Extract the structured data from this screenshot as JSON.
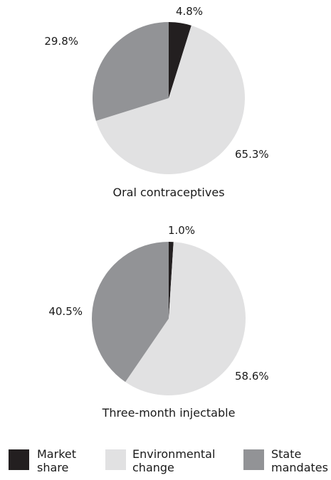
{
  "chart_data": [
    {
      "type": "pie",
      "title": "Oral contraceptives",
      "series": [
        {
          "name": "Market share",
          "value": 4.8,
          "label": "4.8%"
        },
        {
          "name": "Environmental change",
          "value": 65.3,
          "label": "65.3%"
        },
        {
          "name": "State mandates",
          "value": 29.8,
          "label": "29.8%"
        }
      ]
    },
    {
      "type": "pie",
      "title": "Three-month injectable",
      "series": [
        {
          "name": "Market share",
          "value": 1.0,
          "label": "1.0%"
        },
        {
          "name": "Environmental change",
          "value": 58.6,
          "label": "58.6%"
        },
        {
          "name": "State mandates",
          "value": 40.5,
          "label": "40.5%"
        }
      ]
    }
  ],
  "legend": [
    {
      "lines": [
        "Market",
        "share"
      ],
      "color": "#231f20"
    },
    {
      "lines": [
        "Environmental",
        "change"
      ],
      "color": "#e1e1e2"
    },
    {
      "lines": [
        "State",
        "mandates"
      ],
      "color": "#929396"
    }
  ],
  "colors": {
    "market_share": "#231f20",
    "environmental_change": "#e1e1e2",
    "state_mandates": "#929396"
  }
}
